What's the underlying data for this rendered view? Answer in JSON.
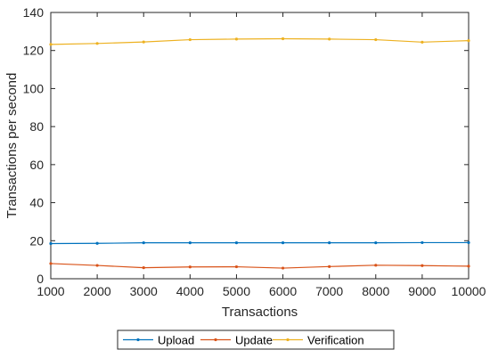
{
  "chart_data": {
    "type": "line",
    "xlabel": "Transactions",
    "ylabel": "Transactions per second",
    "xlim": [
      1000,
      10000
    ],
    "ylim": [
      0,
      140
    ],
    "x": [
      1000,
      2000,
      3000,
      4000,
      5000,
      6000,
      7000,
      8000,
      9000,
      10000
    ],
    "x_tick_labels": [
      "1000",
      "2000",
      "3000",
      "4000",
      "5000",
      "6000",
      "7000",
      "8000",
      "9000",
      "10000"
    ],
    "y_ticks": [
      0,
      20,
      40,
      60,
      80,
      100,
      120,
      140
    ],
    "y_tick_labels": [
      "0",
      "20",
      "40",
      "60",
      "80",
      "100",
      "120",
      "140"
    ],
    "grid": false,
    "legend_position": "bottom",
    "series": [
      {
        "name": "Upload",
        "color": "#0072BD",
        "values": [
          18.5,
          18.6,
          18.9,
          18.9,
          18.9,
          18.9,
          18.9,
          18.9,
          19.0,
          19.0
        ]
      },
      {
        "name": "Update",
        "color": "#D95319",
        "values": [
          8.0,
          7.0,
          5.8,
          6.2,
          6.3,
          5.6,
          6.4,
          7.1,
          6.9,
          6.6
        ]
      },
      {
        "name": "Verification",
        "color": "#EDB120",
        "values": [
          123.2,
          123.7,
          124.5,
          125.7,
          126.0,
          126.2,
          126.0,
          125.7,
          124.4,
          125.2
        ]
      }
    ]
  }
}
